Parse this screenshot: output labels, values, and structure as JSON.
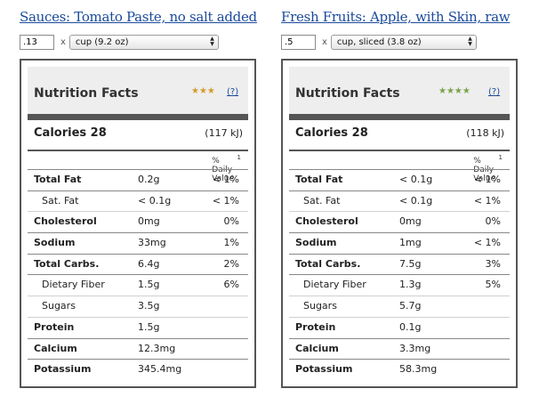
{
  "items": [
    {
      "title": "Sauces: Tomato Paste, no salt added",
      "quantity": ".13",
      "times": "x",
      "unit": "cup (9.2 oz)",
      "nutrition_title": "Nutrition Facts",
      "stars": "★★★",
      "help": "(?)",
      "calories_label": "Calories 28",
      "calories_kj": "(117 kJ)",
      "daily_value_label": "% Daily Value",
      "daily_value_sup": "1",
      "rows": [
        {
          "label": "Total Fat",
          "amount": "0.2g",
          "percent": "< 1%",
          "sub": false
        },
        {
          "label": "Sat. Fat",
          "amount": "< 0.1g",
          "percent": "< 1%",
          "sub": true
        },
        {
          "label": "Cholesterol",
          "amount": "0mg",
          "percent": "0%",
          "sub": false
        },
        {
          "label": "Sodium",
          "amount": "33mg",
          "percent": "1%",
          "sub": false
        },
        {
          "label": "Total Carbs.",
          "amount": "6.4g",
          "percent": "2%",
          "sub": false
        },
        {
          "label": "Dietary Fiber",
          "amount": "1.5g",
          "percent": "6%",
          "sub": true
        },
        {
          "label": "Sugars",
          "amount": "3.5g",
          "percent": "",
          "sub": true
        },
        {
          "label": "Protein",
          "amount": "1.5g",
          "percent": "",
          "sub": false
        },
        {
          "label": "Calcium",
          "amount": "12.3mg",
          "percent": "",
          "sub": false
        },
        {
          "label": "Potassium",
          "amount": "345.4mg",
          "percent": "",
          "sub": false
        }
      ]
    },
    {
      "title": "Fresh Fruits: Apple, with Skin, raw",
      "quantity": ".5",
      "times": "x",
      "unit": "cup, sliced (3.8 oz)",
      "nutrition_title": "Nutrition Facts",
      "stars": "★★★★",
      "help": "(?)",
      "calories_label": "Calories 28",
      "calories_kj": "(118 kJ)",
      "daily_value_label": "% Daily Value",
      "daily_value_sup": "1",
      "rows": [
        {
          "label": "Total Fat",
          "amount": "< 0.1g",
          "percent": "< 1%",
          "sub": false
        },
        {
          "label": "Sat. Fat",
          "amount": "< 0.1g",
          "percent": "< 1%",
          "sub": true
        },
        {
          "label": "Cholesterol",
          "amount": "0mg",
          "percent": "0%",
          "sub": false
        },
        {
          "label": "Sodium",
          "amount": "1mg",
          "percent": "< 1%",
          "sub": false
        },
        {
          "label": "Total Carbs.",
          "amount": "7.5g",
          "percent": "3%",
          "sub": false
        },
        {
          "label": "Dietary Fiber",
          "amount": "1.3g",
          "percent": "5%",
          "sub": true
        },
        {
          "label": "Sugars",
          "amount": "5.7g",
          "percent": "",
          "sub": true
        },
        {
          "label": "Protein",
          "amount": "0.1g",
          "percent": "",
          "sub": false
        },
        {
          "label": "Calcium",
          "amount": "3.3mg",
          "percent": "",
          "sub": false
        },
        {
          "label": "Potassium",
          "amount": "58.3mg",
          "percent": "",
          "sub": false
        }
      ]
    }
  ]
}
